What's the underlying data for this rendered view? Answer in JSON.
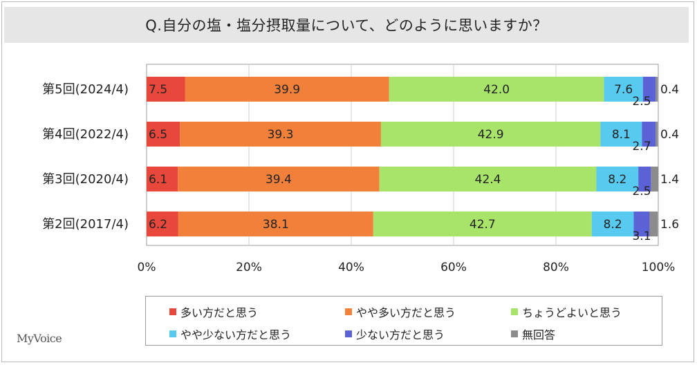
{
  "title": "Q.自分の塩・塩分摂取量について、どのように思いますか？",
  "logo": "MyVoice",
  "colors": {
    "多い方だと思う": "#e8473b",
    "やや多い方だと思う": "#f0803a",
    "ちょうどよいと思う": "#a9e46a",
    "やや少ない方だと思う": "#58c9ef",
    "少ない方だと思う": "#5a62d6",
    "無回答": "#8c8c8c"
  },
  "chart_data": {
    "type": "bar",
    "orientation": "horizontal",
    "stacked": true,
    "stack_mode": "percent",
    "categories": [
      "第5回(2024/4)",
      "第4回(2022/4)",
      "第3回(2020/4)",
      "第2回(2017/4)"
    ],
    "series": [
      {
        "name": "多い方だと思う",
        "values": [
          7.5,
          6.5,
          6.1,
          6.2
        ]
      },
      {
        "name": "やや多い方だと思う",
        "values": [
          39.9,
          39.3,
          39.4,
          38.1
        ]
      },
      {
        "name": "ちょうどよいと思う",
        "values": [
          42.0,
          42.9,
          42.4,
          42.7
        ]
      },
      {
        "name": "やや少ない方だと思う",
        "values": [
          7.6,
          8.1,
          8.2,
          8.2
        ]
      },
      {
        "name": "少ない方だと思う",
        "values": [
          2.5,
          2.7,
          2.5,
          3.1
        ]
      },
      {
        "name": "無回答",
        "values": [
          0.4,
          0.4,
          1.4,
          1.6
        ]
      }
    ],
    "xlim": [
      0,
      100
    ],
    "x_ticks": [
      "0%",
      "20%",
      "40%",
      "60%",
      "80%",
      "100%"
    ],
    "grid": "vertical",
    "legend_position": "bottom"
  }
}
